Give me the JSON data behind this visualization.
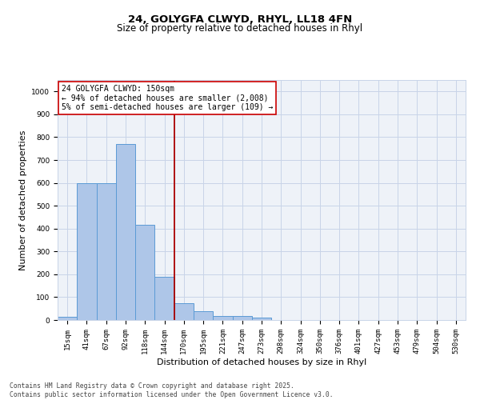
{
  "title1": "24, GOLYGFA CLWYD, RHYL, LL18 4FN",
  "title2": "Size of property relative to detached houses in Rhyl",
  "xlabel": "Distribution of detached houses by size in Rhyl",
  "ylabel": "Number of detached properties",
  "categories": [
    "15sqm",
    "41sqm",
    "67sqm",
    "92sqm",
    "118sqm",
    "144sqm",
    "170sqm",
    "195sqm",
    "221sqm",
    "247sqm",
    "273sqm",
    "298sqm",
    "324sqm",
    "350sqm",
    "376sqm",
    "401sqm",
    "427sqm",
    "453sqm",
    "479sqm",
    "504sqm",
    "530sqm"
  ],
  "values": [
    15,
    600,
    600,
    770,
    415,
    190,
    75,
    40,
    18,
    18,
    12,
    0,
    0,
    0,
    0,
    0,
    0,
    0,
    0,
    0,
    0
  ],
  "bar_color": "#aec6e8",
  "bar_edge_color": "#5b9bd5",
  "red_line_x": 5.5,
  "annotation_text": "24 GOLYGFA CLWYD: 150sqm\n← 94% of detached houses are smaller (2,008)\n5% of semi-detached houses are larger (109) →",
  "annotation_box_color": "#ffffff",
  "annotation_box_edge": "#cc0000",
  "red_line_color": "#aa0000",
  "ylim": [
    0,
    1050
  ],
  "yticks": [
    0,
    100,
    200,
    300,
    400,
    500,
    600,
    700,
    800,
    900,
    1000
  ],
  "grid_color": "#c8d4e8",
  "bg_color": "#eef2f8",
  "footer": "Contains HM Land Registry data © Crown copyright and database right 2025.\nContains public sector information licensed under the Open Government Licence v3.0.",
  "title_fontsize": 9.5,
  "subtitle_fontsize": 8.5,
  "tick_fontsize": 6.5,
  "ylabel_fontsize": 8,
  "xlabel_fontsize": 8,
  "annotation_fontsize": 7,
  "footer_fontsize": 5.8
}
